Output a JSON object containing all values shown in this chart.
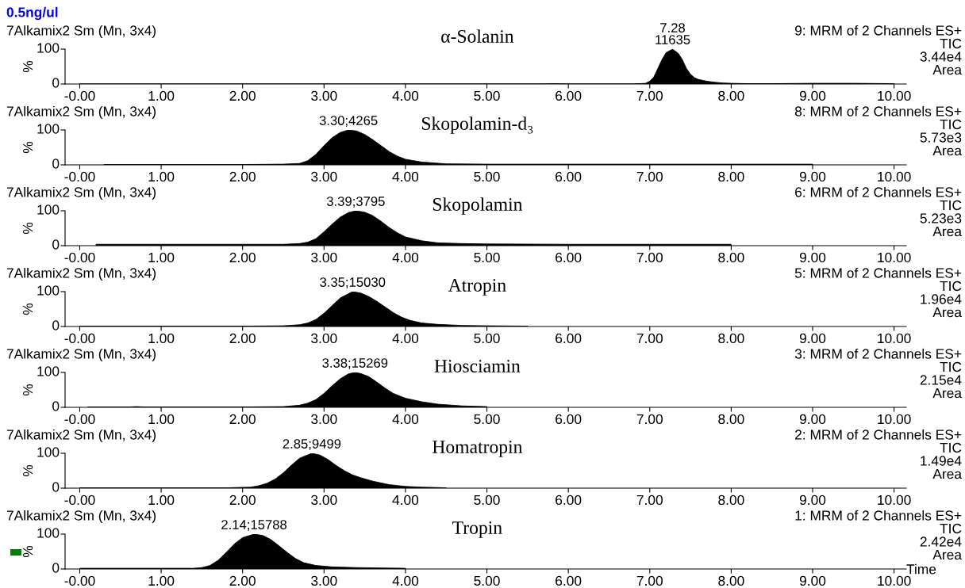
{
  "chart_data": [
    {
      "type": "area",
      "title": "α-Solanin",
      "ylabel": "%",
      "annotations": [
        "0.5ng/ul",
        "7Alkamix2 Sm (Mn, 3x4)",
        "9: MRM of 2 Channels ES+",
        "TIC",
        "3.44e4",
        "Area",
        {
          "text": "7.28\n11635",
          "x": 7.28,
          "y": 100
        }
      ],
      "xlim": [
        -0.18,
        10.15
      ],
      "ylim": [
        0,
        100
      ],
      "yticks": [
        0,
        100
      ],
      "xticks": [
        {
          "value": 0,
          "label": "-0.00"
        },
        {
          "value": 1,
          "label": "1.00"
        },
        {
          "value": 2,
          "label": "2.00"
        },
        {
          "value": 3,
          "label": "3.00"
        },
        {
          "value": 4,
          "label": "4.00"
        },
        {
          "value": 5,
          "label": "5.00"
        },
        {
          "value": 6,
          "label": "6.00"
        },
        {
          "value": 7,
          "label": "7.00"
        },
        {
          "value": 8,
          "label": "8.00"
        },
        {
          "value": 9,
          "label": "9.00"
        },
        {
          "value": 10,
          "label": "10.00"
        }
      ],
      "series": [
        {
          "color": "#000000",
          "x": [
            0,
            1,
            2,
            3,
            4,
            5,
            5.7,
            5.8,
            6,
            6.8,
            6.95,
            7.0,
            7.05,
            7.1,
            7.15,
            7.2,
            7.28,
            7.35,
            7.4,
            7.45,
            7.5,
            7.55,
            7.6,
            7.7,
            7.8,
            7.9,
            8.0,
            8.2,
            8.5,
            9,
            9.5,
            10
          ],
          "values": [
            0,
            0,
            0,
            0,
            0,
            0,
            0,
            1,
            0,
            0,
            2,
            8,
            20,
            45,
            70,
            90,
            100,
            88,
            70,
            45,
            28,
            18,
            13,
            8,
            5,
            3,
            2,
            1,
            1,
            2,
            2,
            1
          ]
        }
      ]
    },
    {
      "type": "area",
      "title": "Skopolamin-d₃",
      "ylabel": "%",
      "annotations": [
        "7Alkamix2 Sm (Mn, 3x4)",
        "8: MRM of 2 Channels ES+",
        "TIC",
        "5.73e3",
        "Area",
        {
          "text": "3.30;4265",
          "x": 3.3,
          "y": 100
        }
      ],
      "xlim": [
        -0.18,
        10.15
      ],
      "ylim": [
        0,
        100
      ],
      "yticks": [
        0,
        100
      ],
      "xticks": [
        {
          "value": 0,
          "label": "-0.00"
        },
        {
          "value": 1,
          "label": "1.00"
        },
        {
          "value": 2,
          "label": "2.00"
        },
        {
          "value": 3,
          "label": "3.00"
        },
        {
          "value": 4,
          "label": "4.00"
        },
        {
          "value": 5,
          "label": "5.00"
        },
        {
          "value": 6,
          "label": "6.00"
        },
        {
          "value": 7,
          "label": "7.00"
        },
        {
          "value": 8,
          "label": "8.00"
        },
        {
          "value": 9,
          "label": "9.00"
        },
        {
          "value": 10,
          "label": "10.00"
        }
      ],
      "series": [
        {
          "color": "#000000",
          "x": [
            0.3,
            1,
            2,
            2.5,
            2.7,
            2.8,
            2.9,
            3.0,
            3.1,
            3.2,
            3.3,
            3.4,
            3.5,
            3.6,
            3.7,
            3.8,
            3.9,
            4.0,
            4.2,
            4.5,
            5,
            6,
            7,
            8,
            9
          ],
          "values": [
            1,
            1,
            1,
            2,
            4,
            12,
            30,
            55,
            78,
            93,
            100,
            97,
            87,
            72,
            55,
            38,
            25,
            16,
            8,
            3,
            2,
            2,
            2,
            2,
            2
          ]
        }
      ]
    },
    {
      "type": "area",
      "title": "Skopolamin",
      "ylabel": "%",
      "annotations": [
        "7Alkamix2 Sm (Mn, 3x4)",
        "6: MRM of 2 Channels ES+",
        "TIC",
        "5.23e3",
        "Area",
        {
          "text": "3.39;3795",
          "x": 3.39,
          "y": 100
        }
      ],
      "xlim": [
        -0.18,
        10.15
      ],
      "ylim": [
        0,
        100
      ],
      "yticks": [
        0,
        100
      ],
      "xticks": [
        {
          "value": 0,
          "label": "-0.00"
        },
        {
          "value": 1,
          "label": "1.00"
        },
        {
          "value": 2,
          "label": "2.00"
        },
        {
          "value": 3,
          "label": "3.00"
        },
        {
          "value": 4,
          "label": "4.00"
        },
        {
          "value": 5,
          "label": "5.00"
        },
        {
          "value": 6,
          "label": "6.00"
        },
        {
          "value": 7,
          "label": "7.00"
        },
        {
          "value": 8,
          "label": "8.00"
        },
        {
          "value": 9,
          "label": "9.00"
        },
        {
          "value": 10,
          "label": "10.00"
        }
      ],
      "series": [
        {
          "color": "#000000",
          "x": [
            0.2,
            1,
            2,
            2.5,
            2.7,
            2.8,
            2.9,
            3.0,
            3.1,
            3.2,
            3.3,
            3.39,
            3.5,
            3.6,
            3.7,
            3.8,
            3.9,
            4.0,
            4.2,
            4.4,
            4.7,
            5,
            6,
            7,
            8
          ],
          "values": [
            4,
            4,
            4,
            4,
            6,
            10,
            20,
            40,
            62,
            82,
            95,
            100,
            96,
            86,
            70,
            52,
            37,
            25,
            14,
            8,
            6,
            5,
            4,
            4,
            4
          ]
        }
      ]
    },
    {
      "type": "area",
      "title": "Atropin",
      "ylabel": "%",
      "annotations": [
        "7Alkamix2 Sm (Mn, 3x4)",
        "5: MRM of 2 Channels ES+",
        "TIC",
        "1.96e4",
        "Area",
        {
          "text": "3.35;15030",
          "x": 3.35,
          "y": 100
        }
      ],
      "xlim": [
        -0.18,
        10.15
      ],
      "ylim": [
        0,
        100
      ],
      "yticks": [
        0,
        100
      ],
      "xticks": [
        {
          "value": 0,
          "label": "-0.00"
        },
        {
          "value": 1,
          "label": "1.00"
        },
        {
          "value": 2,
          "label": "2.00"
        },
        {
          "value": 3,
          "label": "3.00"
        },
        {
          "value": 4,
          "label": "4.00"
        },
        {
          "value": 5,
          "label": "5.00"
        },
        {
          "value": 6,
          "label": "6.00"
        },
        {
          "value": 7,
          "label": "7.00"
        },
        {
          "value": 8,
          "label": "8.00"
        },
        {
          "value": 9,
          "label": "9.00"
        },
        {
          "value": 10,
          "label": "10.00"
        }
      ],
      "series": [
        {
          "color": "#000000",
          "x": [
            0,
            1,
            2,
            2.5,
            2.7,
            2.8,
            2.9,
            3.0,
            3.1,
            3.2,
            3.35,
            3.45,
            3.55,
            3.65,
            3.75,
            3.85,
            3.95,
            4.05,
            4.2,
            4.4,
            4.7,
            5,
            5.5
          ],
          "values": [
            1,
            1,
            1,
            2,
            5,
            10,
            20,
            38,
            60,
            82,
            100,
            96,
            86,
            72,
            56,
            40,
            27,
            18,
            10,
            6,
            3,
            2,
            1
          ]
        }
      ]
    },
    {
      "type": "area",
      "title": "Hiosciamin",
      "ylabel": "%",
      "annotations": [
        "7Alkamix2 Sm (Mn, 3x4)",
        "3: MRM of 2 Channels ES+",
        "TIC",
        "2.15e4",
        "Area",
        {
          "text": "3.38;15269",
          "x": 3.38,
          "y": 100
        }
      ],
      "xlim": [
        -0.18,
        10.15
      ],
      "ylim": [
        0,
        100
      ],
      "yticks": [
        0,
        100
      ],
      "xticks": [
        {
          "value": 0,
          "label": "-0.00"
        },
        {
          "value": 1,
          "label": "1.00"
        },
        {
          "value": 2,
          "label": "2.00"
        },
        {
          "value": 3,
          "label": "3.00"
        },
        {
          "value": 4,
          "label": "4.00"
        },
        {
          "value": 5,
          "label": "5.00"
        },
        {
          "value": 6,
          "label": "6.00"
        },
        {
          "value": 7,
          "label": "7.00"
        },
        {
          "value": 8,
          "label": "8.00"
        },
        {
          "value": 9,
          "label": "9.00"
        },
        {
          "value": 10,
          "label": "10.00"
        }
      ],
      "series": [
        {
          "color": "#000000",
          "x": [
            0.1,
            0.6,
            0.7,
            0.8,
            1,
            2,
            2.5,
            2.7,
            2.8,
            2.9,
            3.0,
            3.1,
            3.2,
            3.3,
            3.38,
            3.45,
            3.55,
            3.65,
            3.75,
            3.85,
            4.0,
            4.2,
            4.4,
            4.7,
            5
          ],
          "values": [
            1,
            1,
            2,
            1,
            1,
            1,
            2,
            6,
            12,
            22,
            40,
            62,
            82,
            96,
            100,
            97,
            88,
            72,
            55,
            40,
            26,
            16,
            9,
            4,
            2
          ]
        }
      ]
    },
    {
      "type": "area",
      "title": "Homatropin",
      "ylabel": "%",
      "annotations": [
        "7Alkamix2 Sm (Mn, 3x4)",
        "2: MRM of 2 Channels ES+",
        "TIC",
        "1.49e4",
        "Area",
        {
          "text": "2.85;9499",
          "x": 2.85,
          "y": 100
        }
      ],
      "xlim": [
        -0.18,
        10.15
      ],
      "ylim": [
        0,
        100
      ],
      "yticks": [
        0,
        100
      ],
      "xticks": [
        {
          "value": 0,
          "label": "-0.00"
        },
        {
          "value": 1,
          "label": "1.00"
        },
        {
          "value": 2,
          "label": "2.00"
        },
        {
          "value": 3,
          "label": "3.00"
        },
        {
          "value": 4,
          "label": "4.00"
        },
        {
          "value": 5,
          "label": "5.00"
        },
        {
          "value": 6,
          "label": "6.00"
        },
        {
          "value": 7,
          "label": "7.00"
        },
        {
          "value": 8,
          "label": "8.00"
        },
        {
          "value": 9,
          "label": "9.00"
        },
        {
          "value": 10,
          "label": "10.00"
        }
      ],
      "series": [
        {
          "color": "#000000",
          "x": [
            0,
            1,
            1.8,
            2.1,
            2.2,
            2.3,
            2.4,
            2.5,
            2.6,
            2.7,
            2.85,
            2.95,
            3.05,
            3.15,
            3.25,
            3.35,
            3.45,
            3.6,
            3.8,
            4.0,
            4.2,
            4.5
          ],
          "values": [
            1,
            1,
            1,
            3,
            7,
            14,
            26,
            44,
            66,
            86,
            100,
            95,
            82,
            65,
            50,
            38,
            30,
            20,
            10,
            5,
            3,
            1
          ]
        }
      ]
    },
    {
      "type": "area",
      "title": "Tropin",
      "ylabel": "%",
      "xlabel": "Time",
      "annotations": [
        "7Alkamix2 Sm (Mn, 3x4)",
        "1: MRM of 2 Channels ES+",
        "TIC",
        "2.42e4",
        "Area",
        {
          "text": "2.14;15788",
          "x": 2.14,
          "y": 100
        }
      ],
      "xlim": [
        -0.18,
        10.15
      ],
      "ylim": [
        0,
        100
      ],
      "yticks": [
        0,
        100
      ],
      "xticks": [
        {
          "value": 0,
          "label": "-0.00"
        },
        {
          "value": 1,
          "label": "1.00"
        },
        {
          "value": 2,
          "label": "2.00"
        },
        {
          "value": 3,
          "label": "3.00"
        },
        {
          "value": 4,
          "label": "4.00"
        },
        {
          "value": 5,
          "label": "5.00"
        },
        {
          "value": 6,
          "label": "6.00"
        },
        {
          "value": 7,
          "label": "7.00"
        },
        {
          "value": 8,
          "label": "8.00"
        },
        {
          "value": 9,
          "label": "9.00"
        },
        {
          "value": 10,
          "label": "10.00"
        }
      ],
      "series": [
        {
          "color": "#000000",
          "x": [
            0,
            1,
            1.4,
            1.5,
            1.6,
            1.7,
            1.8,
            1.9,
            2.0,
            2.14,
            2.25,
            2.35,
            2.45,
            2.55,
            2.65,
            2.75,
            2.9,
            3.1,
            3.4,
            3.7,
            4.0
          ],
          "values": [
            2,
            2,
            2,
            4,
            10,
            25,
            48,
            72,
            90,
            100,
            96,
            84,
            66,
            47,
            30,
            18,
            10,
            6,
            4,
            3,
            2
          ]
        }
      ]
    }
  ]
}
